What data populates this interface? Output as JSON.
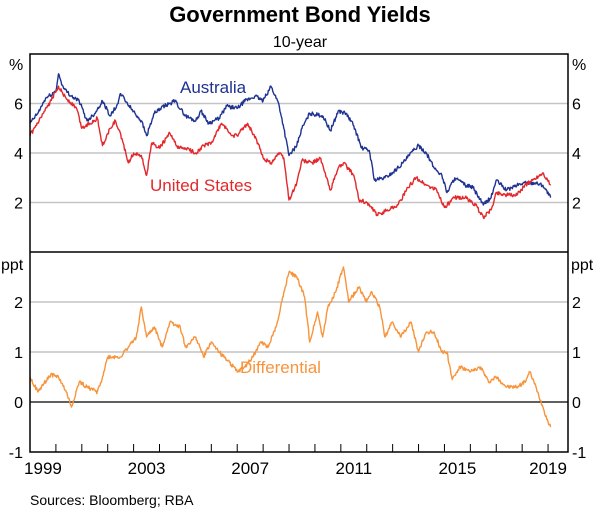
{
  "chart_data": {
    "type": "line",
    "title": "Government Bond Yields",
    "subtitle": "10-year",
    "source": "Sources: Bloomberg; RBA",
    "xlim": [
      1999,
      2019.77
    ],
    "x_tick_labels": [
      "1999",
      "2003",
      "2007",
      "2011",
      "2015",
      "2019"
    ],
    "x_tick_label_years": [
      1999,
      2003,
      2007,
      2011,
      2015,
      2019
    ],
    "colors": {
      "australia": "#1f3292",
      "united_states": "#e3282c",
      "differential": "#f7943c",
      "grid": "#c4c4c4"
    },
    "panels": [
      {
        "name": "yields",
        "unit_left": "%",
        "unit_right": "%",
        "ylim": [
          0,
          8
        ],
        "y_ticks": [
          2,
          4,
          6
        ],
        "y_tick_labels": [
          "2",
          "4",
          "6"
        ],
        "series": [
          {
            "name": "Australia",
            "key": "australia",
            "x": [
              1999.0,
              1999.3,
              1999.6,
              2000.0,
              2000.1,
              2000.3,
              2000.6,
              2000.9,
              2001.2,
              2001.5,
              2001.8,
              2002.1,
              2002.4,
              2002.5,
              2002.9,
              2003.3,
              2003.5,
              2003.8,
              2004.2,
              2004.6,
              2005.0,
              2005.4,
              2005.6,
              2005.9,
              2006.3,
              2006.6,
              2007.0,
              2007.3,
              2007.7,
              2008.0,
              2008.3,
              2008.6,
              2008.8,
              2009.0,
              2009.3,
              2009.5,
              2009.8,
              2010.3,
              2010.6,
              2010.9,
              2011.2,
              2011.5,
              2011.8,
              2012.1,
              2012.3,
              2012.7,
              2013.0,
              2013.4,
              2013.8,
              2014.0,
              2014.3,
              2014.6,
              2014.9,
              2015.1,
              2015.4,
              2015.8,
              2016.1,
              2016.5,
              2016.8,
              2017.0,
              2017.4,
              2017.8,
              2018.1,
              2018.5,
              2018.8,
              2019.1
            ],
            "y": [
              5.2,
              5.6,
              6.2,
              6.5,
              7.2,
              6.6,
              6.3,
              6.1,
              5.3,
              5.6,
              6.1,
              5.5,
              6.0,
              6.4,
              5.8,
              5.3,
              4.7,
              5.6,
              5.9,
              6.1,
              5.5,
              5.3,
              5.7,
              5.2,
              5.4,
              5.9,
              5.8,
              6.1,
              6.3,
              6.1,
              6.7,
              6.0,
              5.0,
              3.9,
              4.3,
              5.0,
              5.6,
              5.5,
              4.9,
              5.7,
              5.6,
              5.1,
              4.2,
              4.1,
              2.9,
              3.0,
              3.2,
              3.6,
              4.1,
              4.3,
              4.0,
              3.4,
              3.1,
              2.4,
              3.0,
              2.7,
              2.6,
              1.9,
              2.2,
              2.9,
              2.5,
              2.7,
              2.8,
              2.8,
              2.7,
              2.2
            ]
          },
          {
            "name": "United States",
            "key": "united_states",
            "x": [
              1999.0,
              1999.3,
              1999.7,
              2000.1,
              2000.4,
              2000.8,
              2001.0,
              2001.3,
              2001.6,
              2001.8,
              2002.1,
              2002.3,
              2002.6,
              2002.8,
              2003.0,
              2003.3,
              2003.5,
              2003.7,
              2004.0,
              2004.4,
              2004.7,
              2005.0,
              2005.4,
              2005.7,
              2006.0,
              2006.4,
              2006.8,
              2007.0,
              2007.4,
              2007.8,
              2008.0,
              2008.3,
              2008.6,
              2008.8,
              2009.0,
              2009.3,
              2009.5,
              2009.9,
              2010.2,
              2010.6,
              2010.9,
              2011.1,
              2011.5,
              2011.7,
              2012.0,
              2012.4,
              2012.8,
              2013.2,
              2013.6,
              2013.9,
              2014.3,
              2014.7,
              2015.0,
              2015.4,
              2015.8,
              2016.2,
              2016.5,
              2016.8,
              2017.0,
              2017.4,
              2017.8,
              2018.1,
              2018.4,
              2018.8,
              2019.1
            ],
            "y": [
              4.7,
              5.2,
              5.9,
              6.7,
              6.2,
              5.8,
              5.0,
              5.2,
              5.4,
              4.3,
              5.0,
              5.3,
              4.4,
              3.6,
              4.0,
              3.9,
              3.1,
              4.4,
              4.2,
              4.8,
              4.2,
              4.2,
              4.0,
              4.3,
              4.4,
              5.2,
              4.7,
              4.7,
              5.2,
              4.4,
              3.8,
              3.6,
              4.0,
              3.8,
              2.1,
              2.8,
              3.7,
              3.6,
              3.8,
              2.5,
              3.4,
              3.6,
              3.1,
              2.1,
              2.0,
              1.5,
              1.7,
              1.9,
              2.6,
              3.0,
              2.7,
              2.5,
              1.8,
              2.2,
              2.2,
              1.9,
              1.4,
              1.7,
              2.4,
              2.3,
              2.3,
              2.7,
              2.9,
              3.2,
              2.7
            ]
          }
        ]
      },
      {
        "name": "differential",
        "unit_left": "ppt",
        "unit_right": "ppt",
        "ylim": [
          -1,
          3
        ],
        "y_ticks": [
          -1,
          0,
          1,
          2
        ],
        "y_tick_labels": [
          "-1",
          "0",
          "1",
          "2"
        ],
        "series": [
          {
            "name": "Differential",
            "key": "differential",
            "x": [
              1999.0,
              1999.3,
              1999.8,
              2000.1,
              2000.4,
              2000.6,
              2000.9,
              2001.2,
              2001.6,
              2001.8,
              2002.0,
              2002.3,
              2002.5,
              2002.8,
              2003.1,
              2003.3,
              2003.5,
              2003.8,
              2004.1,
              2004.4,
              2004.8,
              2005.0,
              2005.4,
              2005.7,
              2006.0,
              2006.3,
              2006.7,
              2007.0,
              2007.3,
              2007.6,
              2007.9,
              2008.2,
              2008.5,
              2008.8,
              2009.0,
              2009.3,
              2009.6,
              2009.8,
              2010.1,
              2010.3,
              2010.5,
              2010.8,
              2011.1,
              2011.3,
              2011.7,
              2012.0,
              2012.2,
              2012.5,
              2012.7,
              2013.0,
              2013.3,
              2013.7,
              2014.0,
              2014.3,
              2014.6,
              2014.9,
              2015.1,
              2015.3,
              2015.6,
              2016.0,
              2016.4,
              2016.7,
              2017.0,
              2017.4,
              2017.8,
              2018.1,
              2018.3,
              2018.6,
              2018.8,
              2019.0,
              2019.1
            ],
            "y": [
              0.5,
              0.2,
              0.55,
              0.5,
              0.2,
              -0.1,
              0.4,
              0.3,
              0.2,
              0.5,
              0.9,
              0.9,
              0.9,
              1.1,
              1.3,
              1.9,
              1.3,
              1.5,
              1.1,
              1.6,
              1.5,
              1.1,
              1.3,
              0.9,
              1.2,
              1.0,
              0.8,
              0.6,
              0.7,
              0.9,
              1.2,
              1.1,
              1.5,
              2.2,
              2.6,
              2.5,
              2.1,
              1.2,
              1.8,
              1.3,
              1.9,
              2.2,
              2.7,
              2.0,
              2.3,
              2.0,
              2.2,
              1.9,
              1.3,
              1.6,
              1.3,
              1.6,
              1.0,
              1.4,
              1.4,
              1.0,
              1.0,
              0.45,
              0.7,
              0.6,
              0.7,
              0.4,
              0.5,
              0.3,
              0.3,
              0.4,
              0.6,
              0.2,
              -0.1,
              -0.4,
              -0.5
            ]
          }
        ]
      }
    ]
  }
}
